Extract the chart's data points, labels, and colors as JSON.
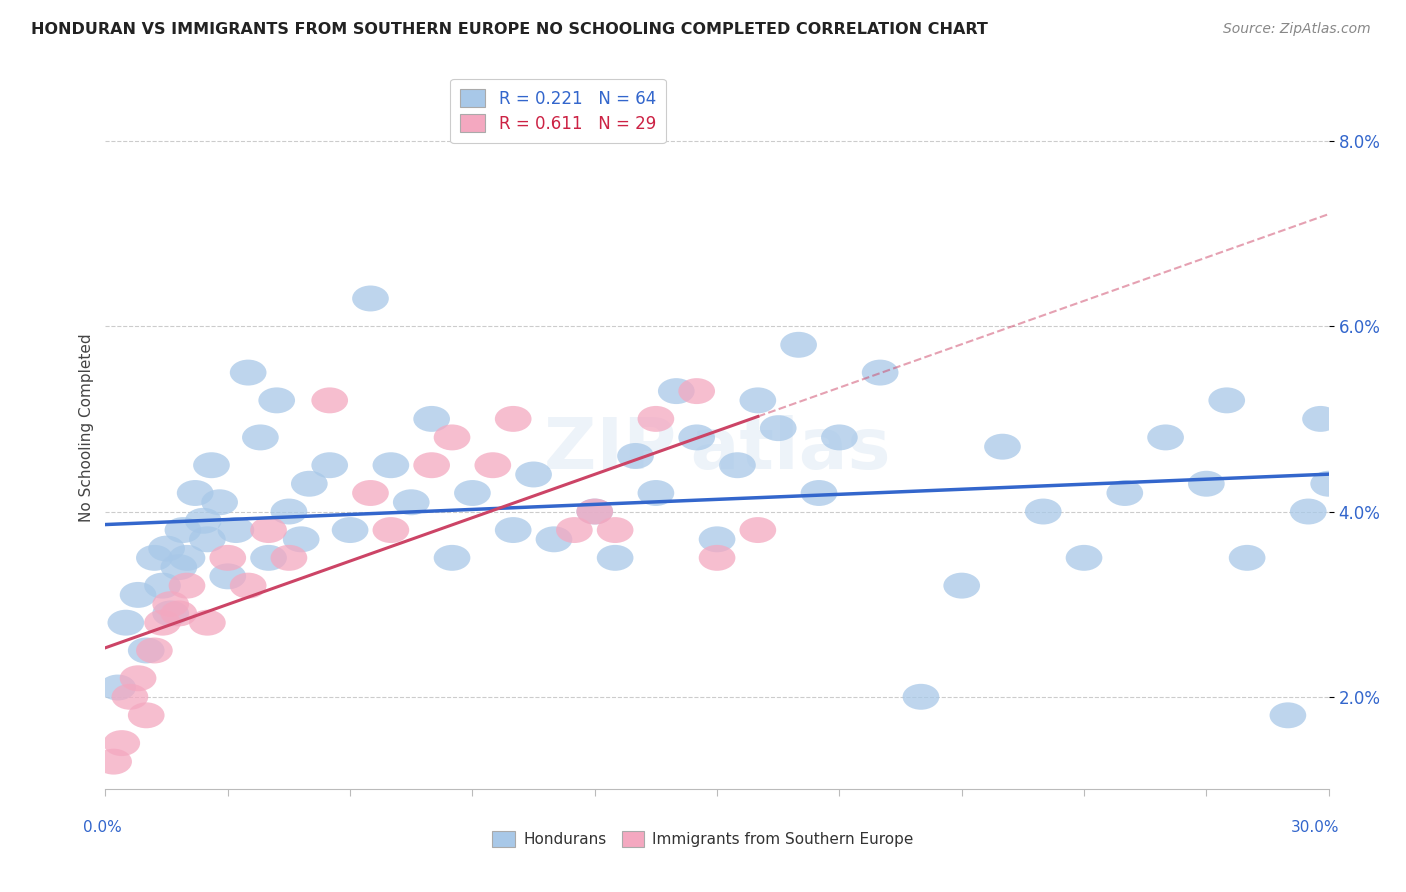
{
  "title": "HONDURAN VS IMMIGRANTS FROM SOUTHERN EUROPE NO SCHOOLING COMPLETED CORRELATION CHART",
  "source": "Source: ZipAtlas.com",
  "ylabel": "No Schooling Completed",
  "xmin": 0.0,
  "xmax": 30.0,
  "ymin": 1.0,
  "ymax": 8.8,
  "blue_R": 0.221,
  "blue_N": 64,
  "pink_R": 0.611,
  "pink_N": 29,
  "blue_color": "#a8c8e8",
  "pink_color": "#f4a8c0",
  "blue_line_color": "#3366cc",
  "pink_line_color": "#cc4466",
  "watermark": "ZIPAtlas",
  "legend_label_blue": "Hondurans",
  "legend_label_pink": "Immigrants from Southern Europe",
  "background_color": "#ffffff",
  "grid_color": "#cccccc",
  "blue_scatter_x": [
    0.3,
    0.5,
    0.8,
    1.0,
    1.2,
    1.4,
    1.5,
    1.6,
    1.8,
    1.9,
    2.0,
    2.2,
    2.4,
    2.5,
    2.6,
    2.8,
    3.0,
    3.2,
    3.5,
    3.8,
    4.0,
    4.2,
    4.5,
    4.8,
    5.0,
    5.5,
    6.0,
    6.5,
    7.0,
    7.5,
    8.0,
    8.5,
    9.0,
    10.0,
    10.5,
    11.0,
    12.0,
    12.5,
    13.0,
    13.5,
    14.0,
    14.5,
    15.0,
    15.5,
    16.0,
    16.5,
    17.0,
    17.5,
    18.0,
    19.0,
    20.0,
    21.0,
    22.0,
    23.0,
    24.0,
    25.0,
    26.0,
    27.0,
    27.5,
    28.0,
    29.0,
    29.5,
    29.8,
    30.0
  ],
  "blue_scatter_y": [
    2.1,
    2.8,
    3.1,
    2.5,
    3.5,
    3.2,
    3.6,
    2.9,
    3.4,
    3.8,
    3.5,
    4.2,
    3.9,
    3.7,
    4.5,
    4.1,
    3.3,
    3.8,
    5.5,
    4.8,
    3.5,
    5.2,
    4.0,
    3.7,
    4.3,
    4.5,
    3.8,
    6.3,
    4.5,
    4.1,
    5.0,
    3.5,
    4.2,
    3.8,
    4.4,
    3.7,
    4.0,
    3.5,
    4.6,
    4.2,
    5.3,
    4.8,
    3.7,
    4.5,
    5.2,
    4.9,
    5.8,
    4.2,
    4.8,
    5.5,
    2.0,
    3.2,
    4.7,
    4.0,
    3.5,
    4.2,
    4.8,
    4.3,
    5.2,
    3.5,
    1.8,
    4.0,
    5.0,
    4.3
  ],
  "pink_scatter_x": [
    0.2,
    0.4,
    0.6,
    0.8,
    1.0,
    1.2,
    1.4,
    1.6,
    1.8,
    2.0,
    2.5,
    3.0,
    3.5,
    4.0,
    4.5,
    5.5,
    6.5,
    7.0,
    8.0,
    8.5,
    9.5,
    10.0,
    11.5,
    12.0,
    12.5,
    13.5,
    14.5,
    15.0,
    16.0
  ],
  "pink_scatter_y": [
    1.3,
    1.5,
    2.0,
    2.2,
    1.8,
    2.5,
    2.8,
    3.0,
    2.9,
    3.2,
    2.8,
    3.5,
    3.2,
    3.8,
    3.5,
    5.2,
    4.2,
    3.8,
    4.5,
    4.8,
    4.5,
    5.0,
    3.8,
    4.0,
    3.8,
    5.0,
    5.3,
    3.5,
    3.8
  ],
  "ytick_positions": [
    2.0,
    4.0,
    6.0,
    8.0
  ],
  "ytick_labels": [
    "2.0%",
    "4.0%",
    "6.0%",
    "8.0%"
  ]
}
